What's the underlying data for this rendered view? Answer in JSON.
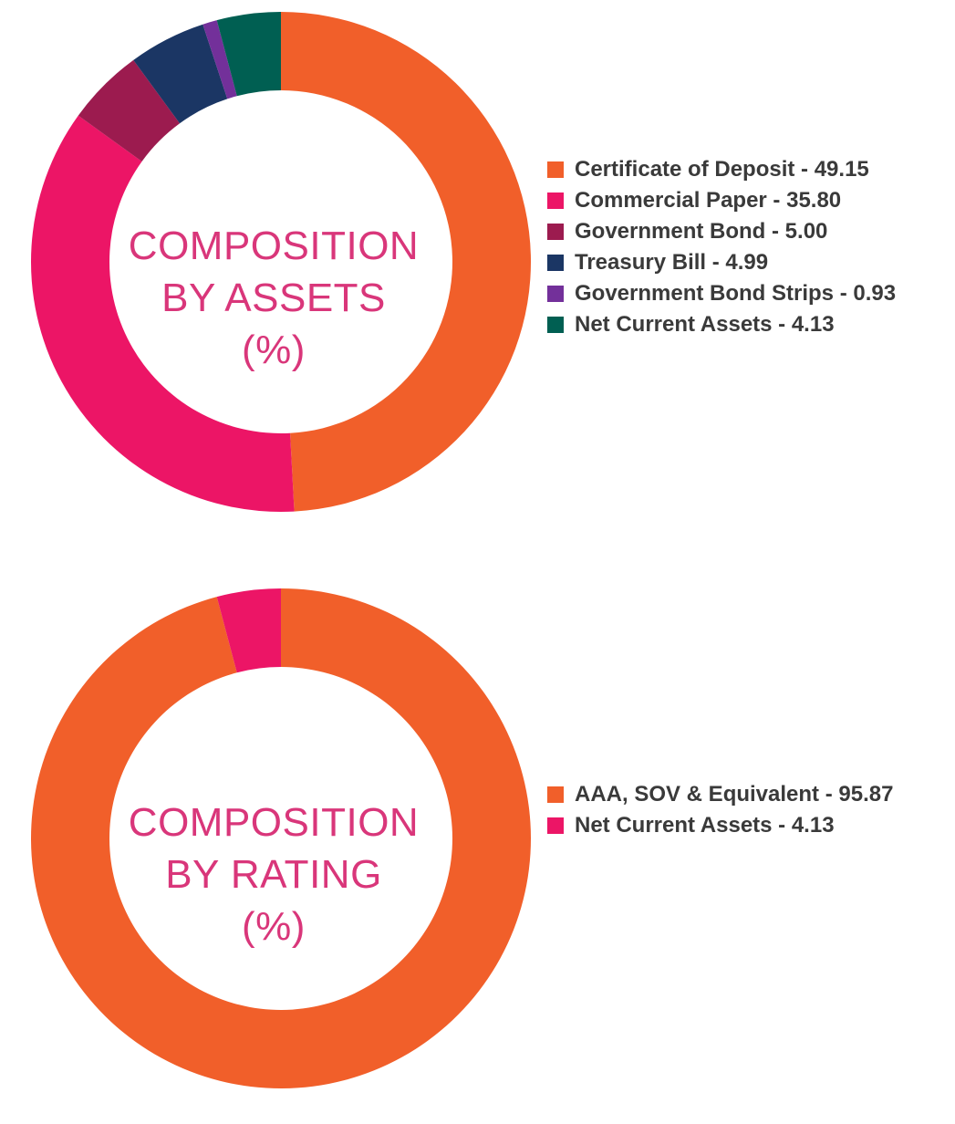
{
  "chart_data": [
    {
      "type": "pie",
      "donut": true,
      "center_title": [
        "COMPOSITION",
        "BY ASSETS",
        "(%)"
      ],
      "legend_position": "right",
      "categories": [
        "Certificate of Deposit",
        "Commercial Paper",
        "Government Bond",
        "Treasury Bill",
        "Government Bond Strips",
        "Net Current Assets"
      ],
      "values": [
        49.15,
        35.8,
        5.0,
        4.99,
        0.93,
        4.13
      ],
      "colors": [
        "#f15f2a",
        "#ec1566",
        "#9c1b4f",
        "#1b3664",
        "#73309a",
        "#005f52"
      ],
      "legend_labels": [
        "Certificate of Deposit - 49.15",
        "Commercial Paper - 35.80",
        "Government Bond - 5.00",
        "Treasury Bill - 4.99",
        "Government Bond Strips - 0.93",
        "Net Current Assets - 4.13"
      ]
    },
    {
      "type": "pie",
      "donut": true,
      "center_title": [
        "COMPOSITION",
        "BY RATING",
        "(%)"
      ],
      "legend_position": "right",
      "categories": [
        "AAA, SOV & Equivalent",
        "Net Current Assets"
      ],
      "values": [
        95.87,
        4.13
      ],
      "colors": [
        "#f15f2a",
        "#ec1566"
      ],
      "legend_labels": [
        "AAA, SOV & Equivalent - 95.87",
        "Net Current Assets - 4.13"
      ]
    }
  ],
  "center_text_color": "#d9367a",
  "legend_text_color": "#3a3a3a"
}
